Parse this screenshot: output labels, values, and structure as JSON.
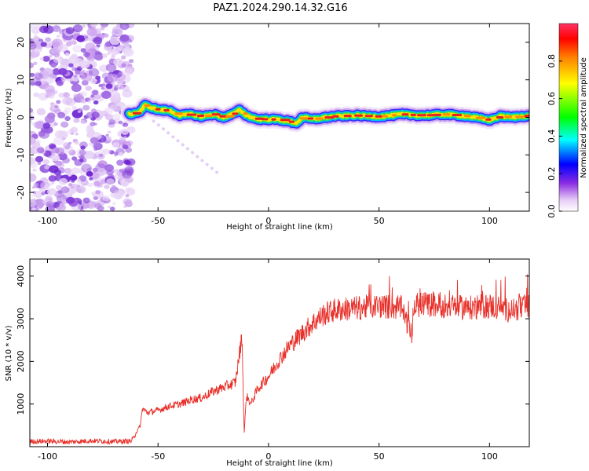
{
  "title": "PAZ1.2024.290.14.32.G16",
  "chart_data": [
    {
      "type": "heatmap",
      "xlabel": "Height of straight line (km)",
      "ylabel": "Frequency (Hz)",
      "xlim": [
        -108,
        118
      ],
      "ylim": [
        -25,
        25
      ],
      "xticks": [
        -100,
        -50,
        0,
        50,
        100
      ],
      "yticks": [
        -20,
        -10,
        0,
        10,
        20
      ],
      "ridge": {
        "x": [
          -63,
          -58,
          -56,
          -50,
          -45,
          -40,
          -35,
          -30,
          -25,
          -20,
          -15,
          -13,
          -10,
          -5,
          0,
          5,
          10,
          13,
          15,
          20,
          30,
          40,
          50,
          60,
          70,
          80,
          90,
          100,
          105,
          110,
          118
        ],
        "y": [
          0.8,
          1.5,
          3.2,
          2.0,
          1.8,
          0.5,
          0.8,
          0.2,
          0.8,
          0.0,
          1.2,
          2.0,
          0.5,
          -0.5,
          -0.5,
          -0.6,
          -1.2,
          -1.5,
          0.0,
          -0.5,
          0.3,
          0.5,
          0.2,
          0.8,
          0.5,
          0.8,
          0.3,
          -0.7,
          0.3,
          0.0,
          0.5
        ]
      },
      "noise_region_x": [
        -108,
        -62
      ],
      "colorbar": {
        "label": "Normalized spectral amplitude",
        "ticks": [
          0.0,
          0.2,
          0.4,
          0.6,
          0.8
        ],
        "range": [
          0,
          1
        ]
      }
    },
    {
      "type": "line",
      "xlabel": "Height of straight line (km)",
      "ylabel": "SNR (10 * v/v)",
      "xlim": [
        -108,
        118
      ],
      "ylim": [
        0,
        4400
      ],
      "xticks": [
        -100,
        -50,
        0,
        50,
        100
      ],
      "yticks": [
        1000,
        2000,
        3000,
        4000
      ],
      "color": "#e8302a",
      "series": [
        {
          "x": [
            -108,
            -100,
            -90,
            -80,
            -70,
            -62,
            -58,
            -57,
            -55,
            -50,
            -45,
            -40,
            -35,
            -30,
            -25,
            -20,
            -15,
            -12,
            -11,
            -10,
            -8,
            -5,
            0,
            5,
            10,
            15,
            20,
            25,
            30,
            40,
            50,
            60,
            65,
            66,
            70,
            80,
            90,
            100,
            110,
            118
          ],
          "y": [
            120,
            130,
            110,
            140,
            120,
            130,
            500,
            900,
            800,
            850,
            950,
            1000,
            1100,
            1150,
            1300,
            1400,
            1500,
            2600,
            300,
            1200,
            1000,
            1350,
            1650,
            2050,
            2400,
            2650,
            2900,
            3100,
            3200,
            3250,
            3300,
            3250,
            2600,
            3300,
            3350,
            3300,
            3250,
            3300,
            3200,
            3300
          ]
        }
      ]
    }
  ],
  "colors": {
    "line": "#e8302a",
    "axis": "#000000"
  }
}
